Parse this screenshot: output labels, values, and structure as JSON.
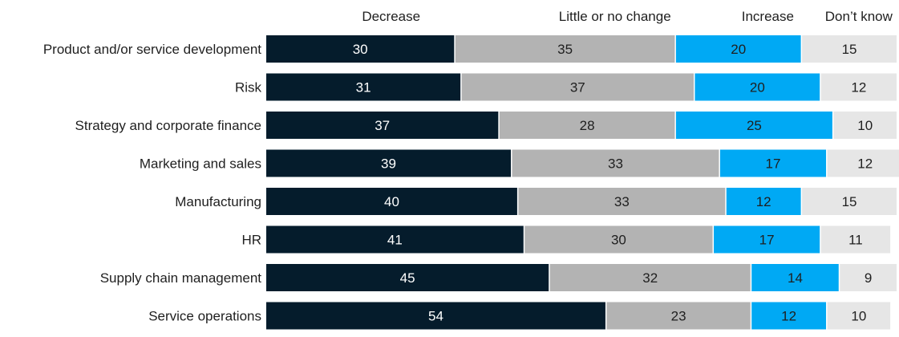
{
  "chart_data": {
    "type": "bar",
    "orientation": "horizontal",
    "stacked": true,
    "categories": [
      "Product and/or service development",
      "Risk",
      "Strategy and corporate finance",
      "Marketing and sales",
      "Manufacturing",
      "HR",
      "Supply chain management",
      "Service operations"
    ],
    "series": [
      {
        "name": "Decrease",
        "values": [
          30,
          31,
          37,
          39,
          40,
          41,
          45,
          54
        ],
        "color": "#051c2c",
        "text_color": "#ffffff"
      },
      {
        "name": "Little or no change",
        "values": [
          35,
          37,
          28,
          33,
          33,
          30,
          32,
          23
        ],
        "color": "#b3b3b3",
        "text_color": "#1f1f1f"
      },
      {
        "name": "Increase",
        "values": [
          20,
          20,
          25,
          17,
          12,
          17,
          14,
          12
        ],
        "color": "#00a9f4",
        "text_color": "#1f1f1f"
      },
      {
        "name": "Don’t know",
        "values": [
          15,
          12,
          10,
          12,
          15,
          11,
          9,
          10
        ],
        "color": "#e6e6e6",
        "text_color": "#1f1f1f"
      }
    ],
    "xlim": [
      0,
      100
    ],
    "legend_position": "top"
  }
}
